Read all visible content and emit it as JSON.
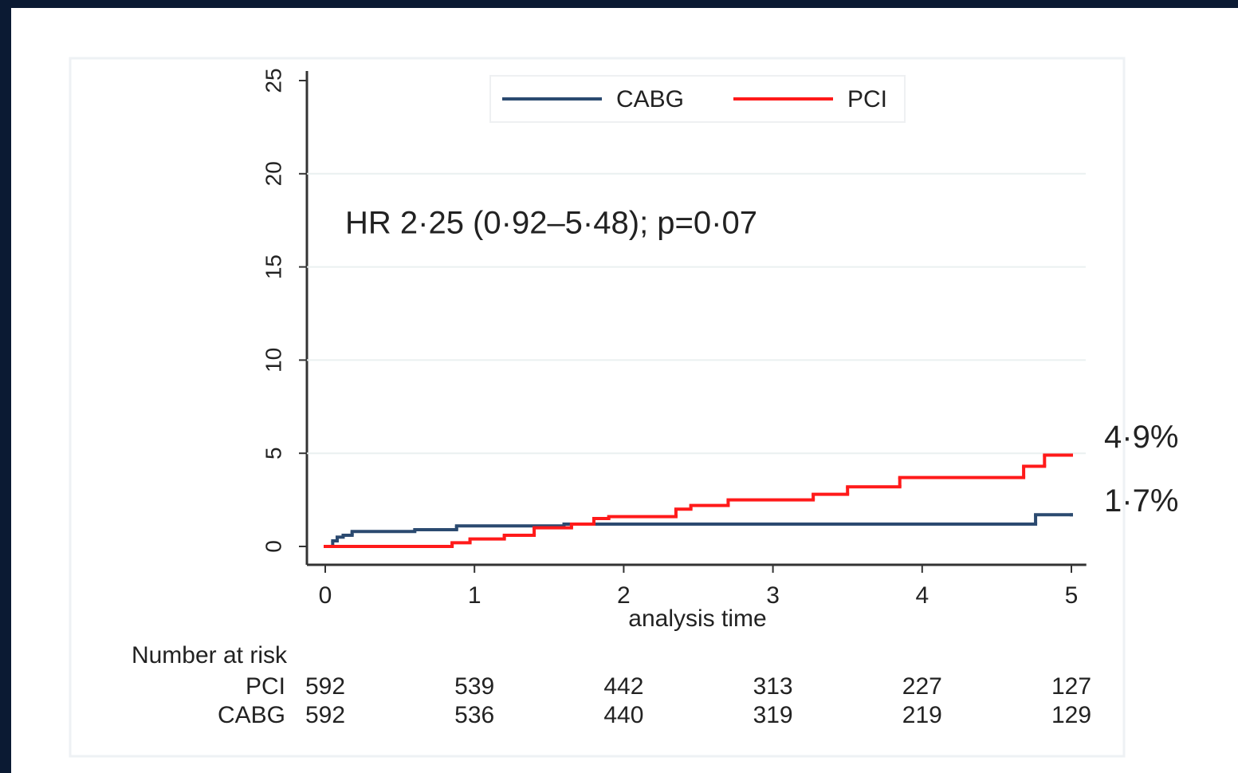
{
  "chart_data": {
    "type": "line",
    "step": "post",
    "x_label": "analysis time",
    "annotation": "HR 2·25 (0·92–5·48); p=0·07",
    "xlim": [
      0,
      5.1
    ],
    "xticks": [
      0,
      1,
      2,
      3,
      4,
      5
    ],
    "ylim": [
      0,
      25
    ],
    "yticks": [
      0,
      5,
      10,
      15,
      20,
      25
    ],
    "grid": true,
    "legend": "top",
    "series": [
      {
        "name": "CABG",
        "color": "#2b4a70",
        "x": [
          0,
          0.05,
          0.08,
          0.12,
          0.18,
          0.6,
          0.88,
          1.6,
          4.76,
          5
        ],
        "values": [
          0,
          0.3,
          0.5,
          0.6,
          0.8,
          0.9,
          1.1,
          1.2,
          1.7,
          1.7
        ],
        "value_labels": [
          null,
          null,
          null,
          null,
          null,
          null,
          null,
          null,
          null,
          "1·7%"
        ]
      },
      {
        "name": "PCI",
        "color": "#ff1a1a",
        "x": [
          0,
          0.85,
          0.97,
          1.2,
          1.4,
          1.65,
          1.8,
          1.9,
          2.35,
          2.45,
          2.7,
          3.27,
          3.5,
          3.85,
          4.68,
          4.82,
          5
        ],
        "values": [
          0,
          0.2,
          0.4,
          0.6,
          1.0,
          1.2,
          1.5,
          1.6,
          2.0,
          2.2,
          2.5,
          2.8,
          3.2,
          3.7,
          4.3,
          4.9,
          4.9
        ],
        "value_labels": [
          null,
          null,
          null,
          null,
          null,
          null,
          null,
          null,
          null,
          null,
          null,
          null,
          null,
          null,
          null,
          null,
          "4·9%"
        ]
      }
    ],
    "risk_table": {
      "title": "Number at risk",
      "rows": [
        {
          "name": "PCI",
          "values": [
            592,
            539,
            442,
            313,
            227,
            127
          ]
        },
        {
          "name": "CABG",
          "values": [
            592,
            536,
            440,
            319,
            219,
            129
          ]
        }
      ]
    }
  }
}
